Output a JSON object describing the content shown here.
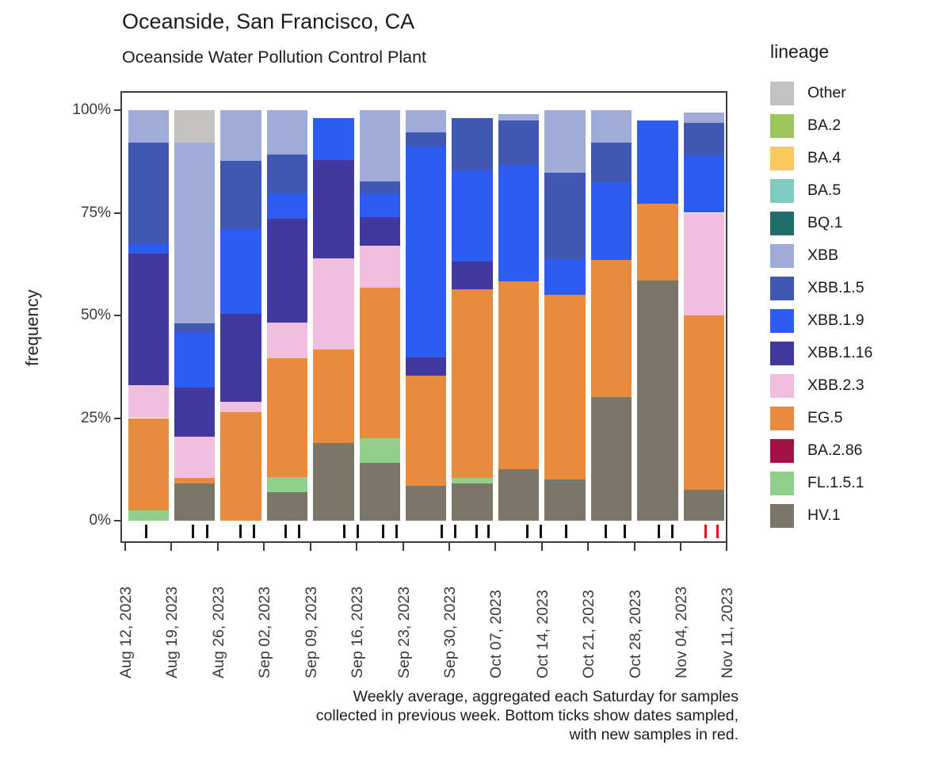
{
  "title": "Oceanside, San Francisco, CA",
  "subtitle": "Oceanside Water Pollution Control Plant",
  "caption": "Weekly average, aggregated each Saturday for samples\ncollected in previous week. Bottom ticks show dates sampled,\nwith new samples in red.",
  "y_axis": {
    "label": "frequency",
    "ticks": [
      "100%",
      "75%",
      "50%",
      "25%",
      "0%"
    ]
  },
  "legend": {
    "title": "lineage",
    "items": [
      {
        "label": "Other",
        "color": "#c3c2c0"
      },
      {
        "label": "BA.2",
        "color": "#9cc65b"
      },
      {
        "label": "BA.4",
        "color": "#fbca5f"
      },
      {
        "label": "BA.5",
        "color": "#7fcbc0"
      },
      {
        "label": "BQ.1",
        "color": "#206e6b"
      },
      {
        "label": "XBB",
        "color": "#9fabd9"
      },
      {
        "label": "XBB.1.5",
        "color": "#4158b2"
      },
      {
        "label": "XBB.1.9",
        "color": "#2e5bf0"
      },
      {
        "label": "XBB.1.16",
        "color": "#41399e"
      },
      {
        "label": "XBB.2.3",
        "color": "#f0bfdf"
      },
      {
        "label": "EG.5",
        "color": "#e88b3e"
      },
      {
        "label": "BA.2.86",
        "color": "#a31043"
      },
      {
        "label": "FL.1.5.1",
        "color": "#8fd08a"
      },
      {
        "label": "HV.1",
        "color": "#7b7768"
      }
    ]
  },
  "chart_data": {
    "type": "bar",
    "stacked": true,
    "title": "Oceanside, San Francisco, CA",
    "subtitle": "Oceanside Water Pollution Control Plant",
    "ylabel": "frequency",
    "ylim": [
      0,
      100
    ],
    "y_tick_values": [
      100,
      75,
      50,
      25,
      0
    ],
    "grid": false,
    "legend_position": "right",
    "x_boundary_labels": [
      "Aug 12, 2023",
      "Aug 19, 2023",
      "Aug 26, 2023",
      "Sep 02, 2023",
      "Sep 09, 2023",
      "Sep 16, 2023",
      "Sep 23, 2023",
      "Sep 30, 2023",
      "Oct 07, 2023",
      "Oct 14, 2023",
      "Oct 21, 2023",
      "Oct 28, 2023",
      "Nov 04, 2023",
      "Nov 11, 2023"
    ],
    "note": "Each bar spans the week between consecutive Saturday labels; segment values are percent frequency, stacked bottom-to-top.",
    "weeks": [
      {
        "start": "Aug 12, 2023",
        "end": "Aug 19, 2023",
        "segments": [
          {
            "lineage": "FL.1.5.1",
            "value": 2.5
          },
          {
            "lineage": "EG.5",
            "value": 22.5
          },
          {
            "lineage": "XBB.2.3",
            "value": 8
          },
          {
            "lineage": "XBB.1.16",
            "value": 32
          },
          {
            "lineage": "XBB.1.9",
            "value": 2.5
          },
          {
            "lineage": "XBB.1.5",
            "value": 24.5
          },
          {
            "lineage": "XBB",
            "value": 8
          }
        ]
      },
      {
        "start": "Aug 19, 2023",
        "end": "Aug 26, 2023",
        "segments": [
          {
            "lineage": "HV.1",
            "value": 9
          },
          {
            "lineage": "EG.5",
            "value": 1.5
          },
          {
            "lineage": "XBB.2.3",
            "value": 10
          },
          {
            "lineage": "XBB.1.16",
            "value": 12
          },
          {
            "lineage": "XBB.1.9",
            "value": 13.5
          },
          {
            "lineage": "XBB.1.5",
            "value": 2
          },
          {
            "lineage": "XBB",
            "value": 44
          },
          {
            "lineage": "Other",
            "value": 8
          }
        ]
      },
      {
        "start": "Aug 26, 2023",
        "end": "Sep 02, 2023",
        "segments": [
          {
            "lineage": "EG.5",
            "value": 26.5
          },
          {
            "lineage": "XBB.2.3",
            "value": 2.5
          },
          {
            "lineage": "XBB.1.16",
            "value": 21.3
          },
          {
            "lineage": "XBB.1.9",
            "value": 20.7
          },
          {
            "lineage": "XBB.1.5",
            "value": 16.6
          },
          {
            "lineage": "XBB",
            "value": 12.4
          }
        ]
      },
      {
        "start": "Sep 02, 2023",
        "end": "Sep 09, 2023",
        "segments": [
          {
            "lineage": "HV.1",
            "value": 7
          },
          {
            "lineage": "FL.1.5.1",
            "value": 3.7
          },
          {
            "lineage": "EG.5",
            "value": 28.8
          },
          {
            "lineage": "XBB.2.3",
            "value": 8.8
          },
          {
            "lineage": "XBB.1.16",
            "value": 25.2
          },
          {
            "lineage": "XBB.1.9",
            "value": 6.2
          },
          {
            "lineage": "XBB.1.5",
            "value": 9.4
          },
          {
            "lineage": "XBB",
            "value": 10.9
          }
        ]
      },
      {
        "start": "Sep 09, 2023",
        "end": "Sep 16, 2023",
        "segments": [
          {
            "lineage": "HV.1",
            "value": 19
          },
          {
            "lineage": "EG.5",
            "value": 22.7
          },
          {
            "lineage": "XBB.2.3",
            "value": 22.2
          },
          {
            "lineage": "XBB.1.16",
            "value": 24
          },
          {
            "lineage": "XBB.1.9",
            "value": 10.1
          }
        ]
      },
      {
        "start": "Sep 16, 2023",
        "end": "Sep 23, 2023",
        "segments": [
          {
            "lineage": "HV.1",
            "value": 14
          },
          {
            "lineage": "FL.1.5.1",
            "value": 6.1
          },
          {
            "lineage": "EG.5",
            "value": 36.6
          },
          {
            "lineage": "XBB.2.3",
            "value": 10.2
          },
          {
            "lineage": "XBB.1.16",
            "value": 7.1
          },
          {
            "lineage": "XBB.1.9",
            "value": 5.8
          },
          {
            "lineage": "XBB.1.5",
            "value": 2.9
          },
          {
            "lineage": "XBB",
            "value": 17.3
          }
        ]
      },
      {
        "start": "Sep 23, 2023",
        "end": "Sep 30, 2023",
        "segments": [
          {
            "lineage": "HV.1",
            "value": 8.5
          },
          {
            "lineage": "EG.5",
            "value": 26.9
          },
          {
            "lineage": "XBB.1.16",
            "value": 4.4
          },
          {
            "lineage": "XBB.1.9",
            "value": 51.4
          },
          {
            "lineage": "XBB.1.5",
            "value": 3.3
          },
          {
            "lineage": "XBB",
            "value": 5.5
          }
        ]
      },
      {
        "start": "Sep 30, 2023",
        "end": "Oct 07, 2023",
        "segments": [
          {
            "lineage": "HV.1",
            "value": 9.1
          },
          {
            "lineage": "FL.1.5.1",
            "value": 1.4
          },
          {
            "lineage": "EG.5",
            "value": 45.9
          },
          {
            "lineage": "XBB.1.16",
            "value": 6.8
          },
          {
            "lineage": "XBB.1.9",
            "value": 22.2
          },
          {
            "lineage": "XBB.1.5",
            "value": 12.6
          }
        ]
      },
      {
        "start": "Oct 07, 2023",
        "end": "Oct 14, 2023",
        "segments": [
          {
            "lineage": "HV.1",
            "value": 12.6
          },
          {
            "lineage": "EG.5",
            "value": 45.7
          },
          {
            "lineage": "XBB.1.9",
            "value": 28.4
          },
          {
            "lineage": "XBB.1.5",
            "value": 10.8
          },
          {
            "lineage": "XBB",
            "value": 1.5
          }
        ]
      },
      {
        "start": "Oct 14, 2023",
        "end": "Oct 21, 2023",
        "segments": [
          {
            "lineage": "HV.1",
            "value": 10.1
          },
          {
            "lineage": "EG.5",
            "value": 44.9
          },
          {
            "lineage": "XBB.1.9",
            "value": 8.7
          },
          {
            "lineage": "XBB.1.5",
            "value": 21
          },
          {
            "lineage": "XBB",
            "value": 15.3
          }
        ]
      },
      {
        "start": "Oct 21, 2023",
        "end": "Oct 28, 2023",
        "segments": [
          {
            "lineage": "HV.1",
            "value": 30.1
          },
          {
            "lineage": "EG.5",
            "value": 33.5
          },
          {
            "lineage": "XBB.1.9",
            "value": 18.8
          },
          {
            "lineage": "XBB.1.5",
            "value": 9.7
          },
          {
            "lineage": "XBB",
            "value": 7.9
          }
        ]
      },
      {
        "start": "Oct 28, 2023",
        "end": "Nov 04, 2023",
        "segments": [
          {
            "lineage": "HV.1",
            "value": 58.5
          },
          {
            "lineage": "EG.5",
            "value": 18.8
          },
          {
            "lineage": "XBB.1.9",
            "value": 20.2
          }
        ]
      },
      {
        "start": "Nov 04, 2023",
        "end": "Nov 11, 2023",
        "segments": [
          {
            "lineage": "HV.1",
            "value": 7.5
          },
          {
            "lineage": "EG.5",
            "value": 42.5
          },
          {
            "lineage": "XBB.2.3",
            "value": 25
          },
          {
            "lineage": "XBB.1.9",
            "value": 14
          },
          {
            "lineage": "XBB.1.5",
            "value": 8
          },
          {
            "lineage": "XBB",
            "value": 2.5
          }
        ]
      }
    ],
    "sample_ticks": [
      {
        "pos": 0.036,
        "new": false
      },
      {
        "pos": 0.114,
        "new": false
      },
      {
        "pos": 0.137,
        "new": false
      },
      {
        "pos": 0.193,
        "new": false
      },
      {
        "pos": 0.216,
        "new": false
      },
      {
        "pos": 0.268,
        "new": false
      },
      {
        "pos": 0.291,
        "new": false
      },
      {
        "pos": 0.366,
        "new": false
      },
      {
        "pos": 0.389,
        "new": false
      },
      {
        "pos": 0.431,
        "new": false
      },
      {
        "pos": 0.454,
        "new": false
      },
      {
        "pos": 0.529,
        "new": false
      },
      {
        "pos": 0.552,
        "new": false
      },
      {
        "pos": 0.587,
        "new": false
      },
      {
        "pos": 0.607,
        "new": false
      },
      {
        "pos": 0.672,
        "new": false
      },
      {
        "pos": 0.694,
        "new": false
      },
      {
        "pos": 0.737,
        "new": false
      },
      {
        "pos": 0.803,
        "new": false
      },
      {
        "pos": 0.835,
        "new": false
      },
      {
        "pos": 0.891,
        "new": false
      },
      {
        "pos": 0.914,
        "new": false
      },
      {
        "pos": 0.969,
        "new": true
      },
      {
        "pos": 0.989,
        "new": true
      }
    ],
    "sample_tick_colors": {
      "old": "#111111",
      "new": "#ee1111"
    }
  }
}
